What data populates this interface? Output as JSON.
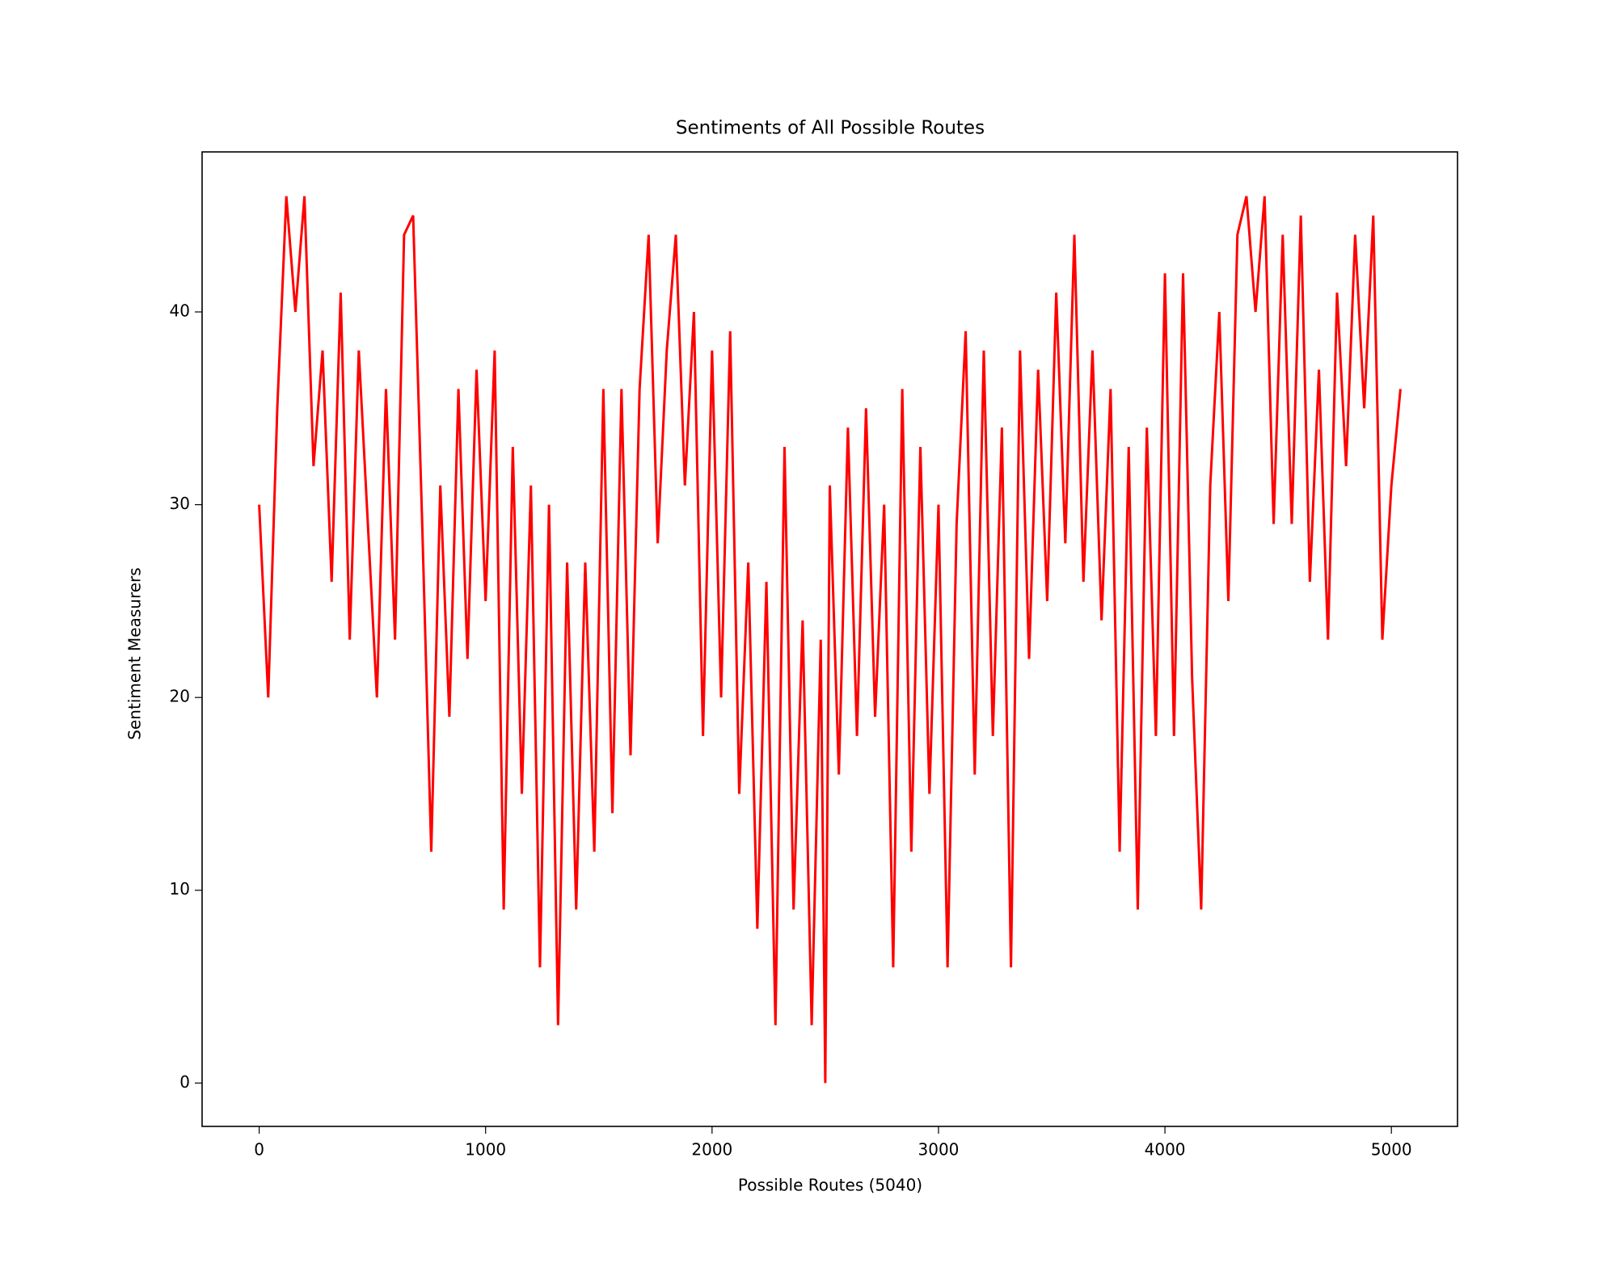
{
  "chart_data": {
    "type": "line",
    "title": "Sentiments of All Possible Routes",
    "x_label": "Possible Routes (5040)",
    "y_label": "Sentiment Measurers",
    "color": "#ff0000",
    "x": [
      0,
      40,
      80,
      120,
      160,
      200,
      240,
      280,
      320,
      360,
      400,
      440,
      480,
      520,
      560,
      600,
      640,
      680,
      720,
      760,
      800,
      840,
      880,
      920,
      960,
      1000,
      1040,
      1080,
      1120,
      1160,
      1200,
      1240,
      1280,
      1320,
      1360,
      1400,
      1440,
      1480,
      1520,
      1560,
      1600,
      1640,
      1680,
      1720,
      1760,
      1800,
      1840,
      1880,
      1920,
      1960,
      2000,
      2040,
      2080,
      2120,
      2160,
      2200,
      2240,
      2280,
      2320,
      2360,
      2400,
      2440,
      2480,
      2500,
      2520,
      2560,
      2600,
      2640,
      2680,
      2720,
      2760,
      2800,
      2840,
      2880,
      2920,
      2960,
      3000,
      3040,
      3080,
      3120,
      3160,
      3200,
      3240,
      3280,
      3320,
      3360,
      3400,
      3440,
      3480,
      3520,
      3560,
      3600,
      3640,
      3680,
      3720,
      3760,
      3800,
      3840,
      3880,
      3920,
      3960,
      4000,
      4040,
      4080,
      4120,
      4160,
      4200,
      4240,
      4280,
      4320,
      4360,
      4400,
      4440,
      4480,
      4520,
      4560,
      4600,
      4640,
      4680,
      4720,
      4760,
      4800,
      4840,
      4880,
      4920,
      4960,
      5000,
      5040
    ],
    "values": [
      30,
      20,
      35,
      46,
      40,
      46,
      32,
      38,
      26,
      41,
      23,
      38,
      29,
      20,
      36,
      23,
      44,
      45,
      29,
      12,
      31,
      19,
      36,
      22,
      37,
      25,
      38,
      9,
      33,
      15,
      31,
      6,
      30,
      3,
      27,
      9,
      27,
      12,
      36,
      14,
      36,
      17,
      36,
      44,
      28,
      38,
      44,
      31,
      40,
      18,
      38,
      20,
      39,
      15,
      27,
      8,
      26,
      3,
      33,
      9,
      24,
      3,
      23,
      0,
      31,
      16,
      34,
      18,
      35,
      19,
      30,
      6,
      36,
      12,
      33,
      15,
      30,
      6,
      29,
      39,
      16,
      38,
      18,
      34,
      6,
      38,
      22,
      37,
      25,
      41,
      28,
      44,
      26,
      38,
      24,
      36,
      12,
      33,
      9,
      34,
      18,
      42,
      18,
      42,
      21,
      9,
      31,
      40,
      25,
      44,
      46,
      40,
      46,
      29,
      44,
      29,
      45,
      26,
      37,
      23,
      41,
      32,
      44,
      35,
      45,
      23,
      31,
      36
    ],
    "xlim": [
      -252,
      5292
    ],
    "ylim": [
      -2.25,
      48.3
    ],
    "xticks": [
      0,
      1000,
      2000,
      3000,
      4000,
      5000
    ],
    "yticks": [
      0,
      10,
      20,
      30,
      40
    ]
  }
}
